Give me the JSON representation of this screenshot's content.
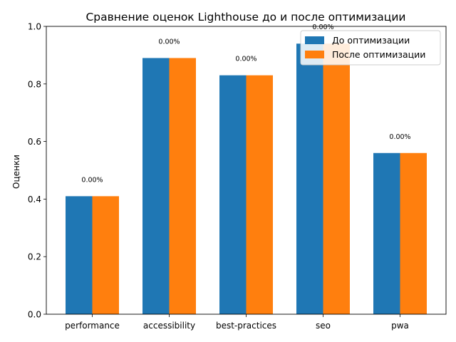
{
  "chart_data": {
    "type": "bar",
    "title": "Сравнение оценок Lighthouse до и после оптимизации",
    "xlabel": "",
    "ylabel": "Оценки",
    "ylim": [
      0,
      1.0
    ],
    "yticks": [
      "0.0",
      "0.2",
      "0.4",
      "0.6",
      "0.8",
      "1.0"
    ],
    "categories": [
      "performance",
      "accessibility",
      "best-practices",
      "seo",
      "pwa"
    ],
    "series": [
      {
        "name": "До оптимизации",
        "color": "#1f77b4",
        "values": [
          0.41,
          0.89,
          0.83,
          0.94,
          0.56
        ]
      },
      {
        "name": "После оптимизации",
        "color": "#ff7f0e",
        "values": [
          0.41,
          0.89,
          0.83,
          0.94,
          0.56
        ]
      }
    ],
    "annotations": [
      "0.00%",
      "0.00%",
      "0.00%",
      "0.00%",
      "0.00%"
    ],
    "legend": "top-right",
    "grid": false
  }
}
